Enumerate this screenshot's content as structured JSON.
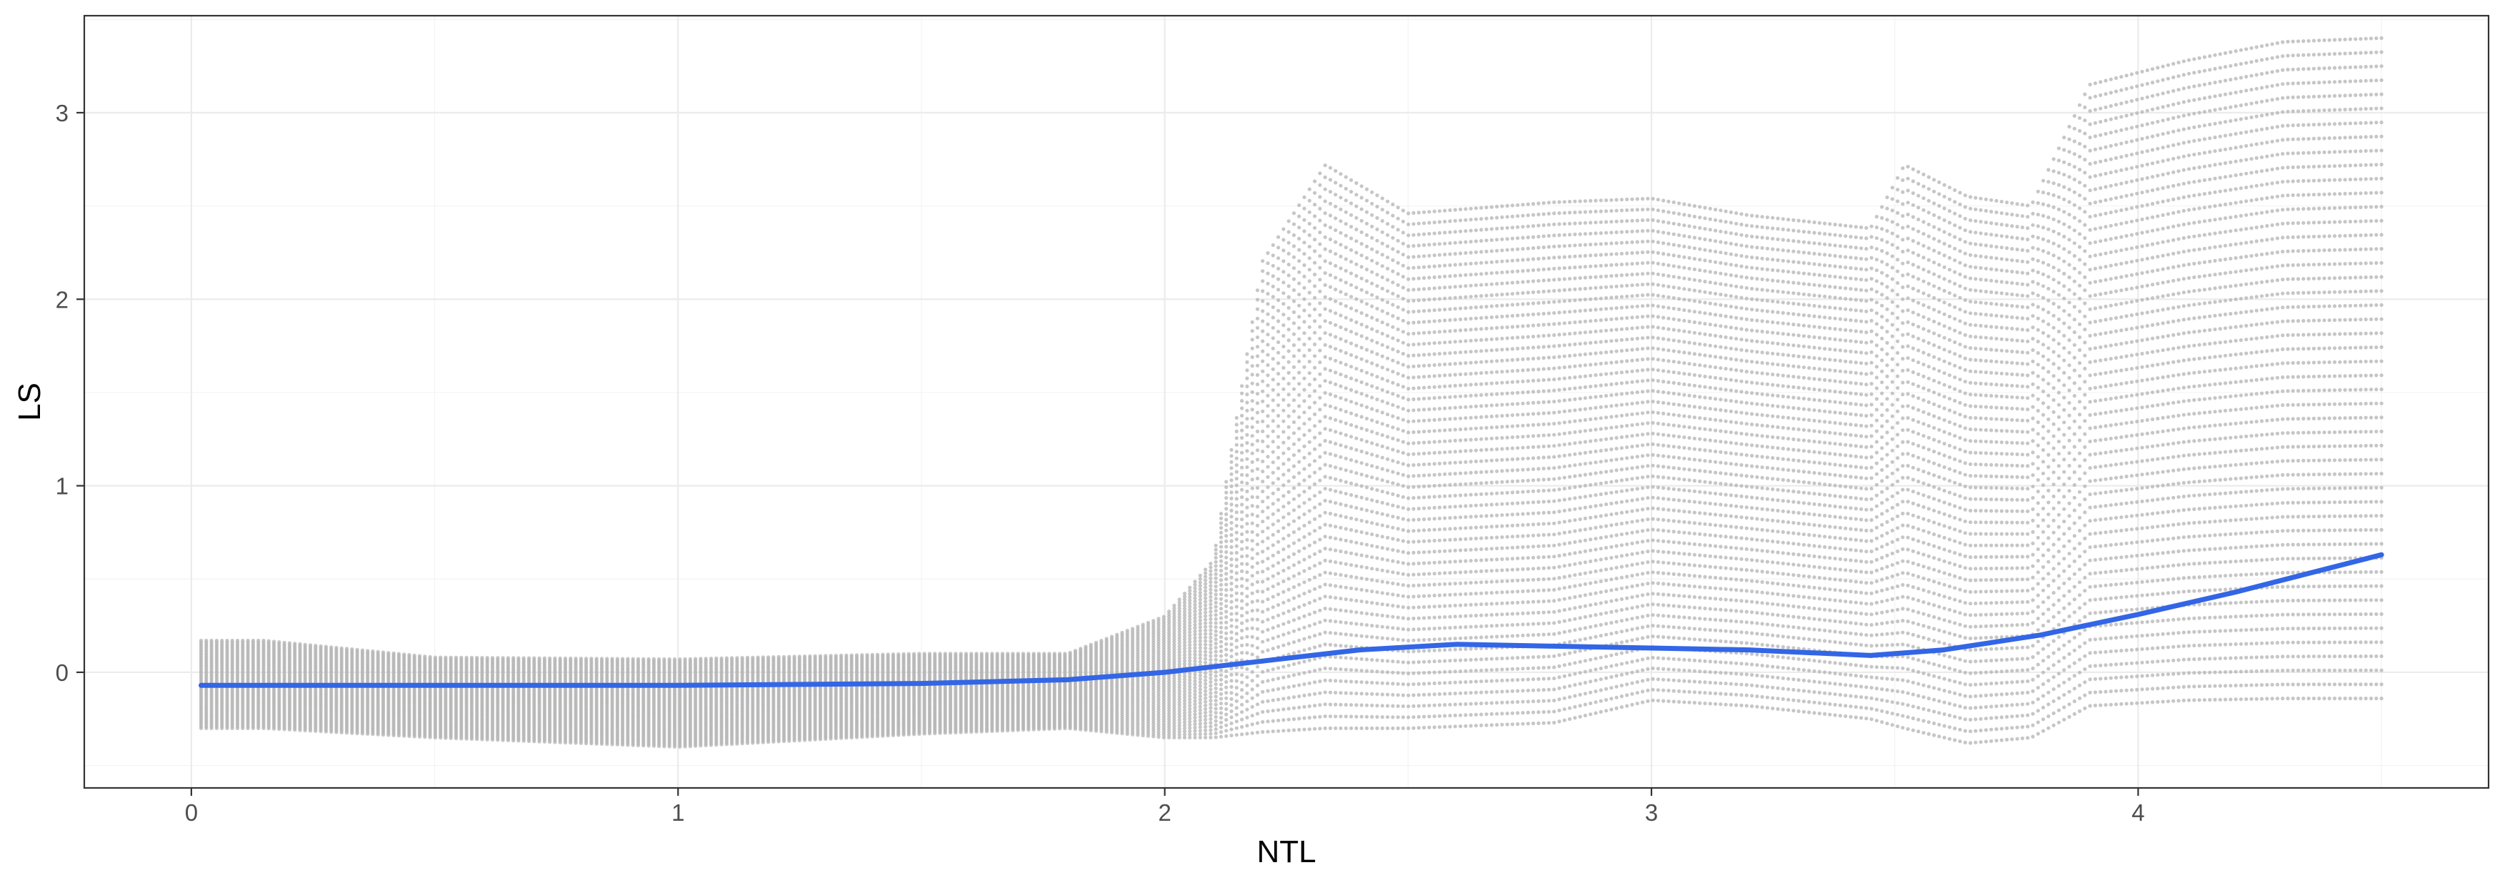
{
  "chart_data": {
    "type": "scatter",
    "xlabel": "NTL",
    "ylabel": "LS",
    "xlim": [
      -0.22,
      4.72
    ],
    "ylim": [
      -0.62,
      3.52
    ],
    "x_ticks": [
      0,
      1,
      2,
      3,
      4
    ],
    "y_ticks": [
      0,
      1,
      2,
      3
    ],
    "grid": true,
    "legend": "none",
    "colors": {
      "points": "#b3b3b3",
      "smooth_line": "#3366e6"
    },
    "scatter_envelope": {
      "x": [
        0.02,
        0.15,
        0.5,
        1.0,
        1.5,
        1.8,
        2.0,
        2.1,
        2.2,
        2.33,
        2.5,
        2.8,
        3.0,
        3.2,
        3.45,
        3.52,
        3.65,
        3.78,
        3.9,
        4.1,
        4.3,
        4.5
      ],
      "max": [
        0.17,
        0.17,
        0.08,
        0.07,
        0.1,
        0.1,
        0.3,
        0.6,
        2.2,
        2.72,
        2.46,
        2.52,
        2.54,
        2.45,
        2.38,
        2.72,
        2.55,
        2.5,
        3.15,
        3.28,
        3.38,
        3.4
      ],
      "min": [
        -0.3,
        -0.3,
        -0.35,
        -0.4,
        -0.33,
        -0.3,
        -0.35,
        -0.35,
        -0.32,
        -0.3,
        -0.3,
        -0.27,
        -0.15,
        -0.18,
        -0.25,
        -0.3,
        -0.38,
        -0.35,
        -0.18,
        -0.15,
        -0.14,
        -0.14
      ]
    },
    "smooth_line": {
      "x": [
        0.02,
        0.5,
        1.0,
        1.5,
        1.8,
        2.0,
        2.2,
        2.4,
        2.6,
        2.8,
        3.0,
        3.2,
        3.45,
        3.6,
        3.8,
        4.0,
        4.2,
        4.5
      ],
      "y": [
        -0.07,
        -0.07,
        -0.07,
        -0.06,
        -0.04,
        0.0,
        0.06,
        0.12,
        0.15,
        0.14,
        0.13,
        0.12,
        0.09,
        0.12,
        0.2,
        0.31,
        0.43,
        0.63
      ]
    }
  }
}
